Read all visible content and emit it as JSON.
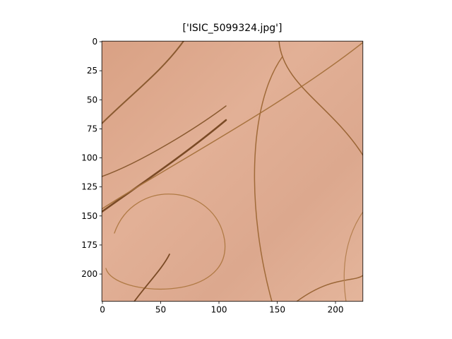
{
  "chart_data": {
    "type": "image",
    "title": "['ISIC_5099324.jpg']",
    "xlim": [
      -0.5,
      223.5
    ],
    "ylim": [
      223.5,
      -0.5
    ],
    "xticks": [
      0,
      50,
      100,
      150,
      200
    ],
    "yticks": [
      0,
      25,
      50,
      75,
      100,
      125,
      150,
      175,
      200
    ]
  }
}
